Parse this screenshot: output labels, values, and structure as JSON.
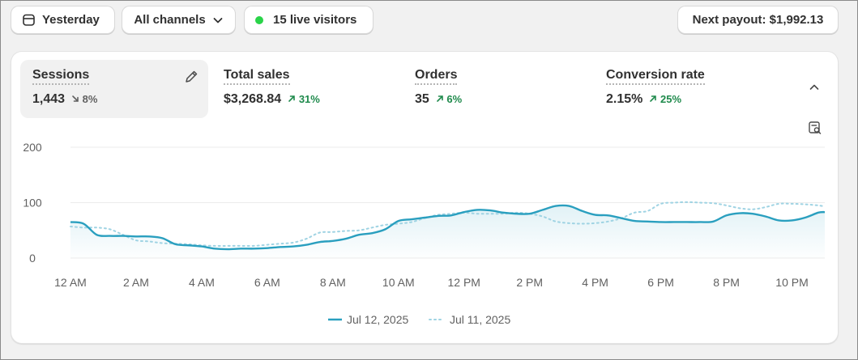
{
  "toolbar": {
    "date_label": "Yesterday",
    "channel_label": "All channels",
    "live_label": "15 live visitors",
    "payout_label": "Next payout: $1,992.13"
  },
  "metrics": [
    {
      "title": "Sessions",
      "value": "1,443",
      "delta": "8%",
      "direction": "down"
    },
    {
      "title": "Total sales",
      "value": "$3,268.84",
      "delta": "31%",
      "direction": "up"
    },
    {
      "title": "Orders",
      "value": "35",
      "delta": "6%",
      "direction": "up"
    },
    {
      "title": "Conversion rate",
      "value": "2.15%",
      "delta": "25%",
      "direction": "up"
    }
  ],
  "colors": {
    "accent": "#2a9fbf",
    "comparison": "#9fd3e3",
    "positive": "#1f8a4c",
    "live": "#2ad449"
  },
  "chart_data": {
    "type": "line",
    "x_ticks": [
      "12 AM",
      "2 AM",
      "4 AM",
      "6 AM",
      "8 AM",
      "10 AM",
      "12 PM",
      "2 PM",
      "4 PM",
      "6 PM",
      "8 PM",
      "10 PM"
    ],
    "y_ticks": [
      0,
      100,
      200
    ],
    "ylim": [
      0,
      200
    ],
    "xlim": [
      0,
      23
    ],
    "grid": true,
    "legend_position": "bottom",
    "series": [
      {
        "name": "Jul 12, 2025",
        "style": "solid",
        "x": [
          0,
          0.4,
          0.8,
          1.2,
          1.6,
          2.0,
          2.4,
          2.8,
          3.2,
          3.6,
          4.0,
          4.4,
          4.8,
          5.2,
          5.6,
          6.0,
          6.4,
          6.8,
          7.2,
          7.6,
          8.0,
          8.4,
          8.8,
          9.2,
          9.6,
          10.0,
          10.4,
          10.8,
          11.2,
          11.6,
          12.0,
          12.4,
          12.8,
          13.2,
          13.6,
          14.0,
          14.4,
          14.8,
          15.2,
          15.6,
          16.0,
          16.4,
          16.8,
          17.2,
          17.6,
          18.0,
          18.4,
          18.8,
          19.2,
          19.6,
          20.0,
          20.4,
          20.8,
          21.2,
          21.6,
          22.0,
          22.4,
          22.8,
          23.0
        ],
        "y": [
          65,
          62,
          42,
          40,
          40,
          39,
          39,
          36,
          25,
          23,
          21,
          17,
          16,
          17,
          17,
          18,
          20,
          21,
          24,
          29,
          31,
          35,
          42,
          45,
          52,
          67,
          70,
          73,
          76,
          77,
          83,
          87,
          86,
          82,
          80,
          80,
          87,
          94,
          94,
          85,
          78,
          77,
          72,
          67,
          66,
          65,
          65,
          65,
          65,
          66,
          77,
          81,
          80,
          75,
          68,
          68,
          73,
          82,
          83
        ]
      },
      {
        "name": "Jul 11, 2025",
        "style": "dotted",
        "x": [
          0,
          0.4,
          0.8,
          1.2,
          1.6,
          2.0,
          2.4,
          2.8,
          3.2,
          3.6,
          4.0,
          4.4,
          4.8,
          5.2,
          5.6,
          6.0,
          6.4,
          6.8,
          7.2,
          7.6,
          8.0,
          8.4,
          8.8,
          9.2,
          9.6,
          10.0,
          10.4,
          10.8,
          11.2,
          11.6,
          12.0,
          12.4,
          12.8,
          13.2,
          13.6,
          14.0,
          14.4,
          14.8,
          15.2,
          15.6,
          16.0,
          16.4,
          16.8,
          17.2,
          17.6,
          18.0,
          18.4,
          18.8,
          19.2,
          19.6,
          20.0,
          20.4,
          20.8,
          21.2,
          21.6,
          22.0,
          22.4,
          22.8,
          23.0
        ],
        "y": [
          57,
          55,
          55,
          52,
          42,
          32,
          30,
          27,
          26,
          25,
          23,
          22,
          22,
          22,
          22,
          24,
          26,
          28,
          35,
          46,
          47,
          49,
          50,
          55,
          60,
          62,
          65,
          72,
          78,
          80,
          82,
          80,
          80,
          80,
          82,
          80,
          75,
          66,
          63,
          62,
          63,
          66,
          72,
          82,
          85,
          98,
          100,
          101,
          100,
          99,
          95,
          90,
          88,
          92,
          98,
          98,
          97,
          95,
          93
        ]
      }
    ]
  }
}
